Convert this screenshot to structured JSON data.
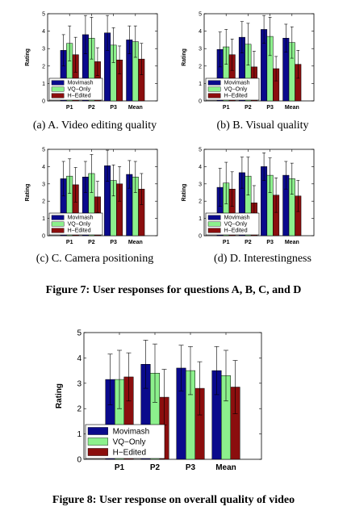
{
  "colors": {
    "movimash": "#0a0a8c",
    "vq_only": "#8cf08c",
    "h_edited": "#8b0e0e"
  },
  "subcaptions": [
    "(a) A. Video editing quality",
    "(b) B. Visual quality",
    "(c) C. Camera positioning",
    "(d) D. Interestingness"
  ],
  "figure7_caption": "Figure 7: User responses for questions A, B, C, and D",
  "figure8_caption": "Figure 8: User response on overall quality of video",
  "chart_data": [
    {
      "type": "bar",
      "ylabel": "Rating",
      "categories": [
        "P1",
        "P2",
        "P3",
        "Mean"
      ],
      "ylim": [
        0,
        5
      ],
      "yticks": [
        0,
        1,
        2,
        3,
        4,
        5
      ],
      "legend": "bottom-left",
      "series": [
        {
          "name": "Movimash",
          "values": [
            2.9,
            3.8,
            3.9,
            3.5
          ],
          "err": [
            0.9,
            1.1,
            1.0,
            0.8
          ]
        },
        {
          "name": "VQ−Only",
          "values": [
            3.3,
            3.6,
            3.2,
            3.4
          ],
          "err": [
            1.0,
            1.2,
            1.0,
            0.9
          ]
        },
        {
          "name": "H−Edited",
          "values": [
            2.65,
            2.25,
            2.35,
            2.4
          ],
          "err": [
            1.0,
            0.8,
            0.8,
            0.9
          ]
        }
      ]
    },
    {
      "type": "bar",
      "ylabel": "Rating",
      "categories": [
        "P1",
        "P2",
        "P3",
        "Mean"
      ],
      "ylim": [
        0,
        5
      ],
      "yticks": [
        0,
        1,
        2,
        3,
        4,
        5
      ],
      "legend": "bottom-left",
      "series": [
        {
          "name": "Movimash",
          "values": [
            2.95,
            3.65,
            4.1,
            3.6
          ],
          "err": [
            1.0,
            0.9,
            0.8,
            0.8
          ]
        },
        {
          "name": "VQ−Only",
          "values": [
            3.1,
            3.25,
            3.7,
            3.35
          ],
          "err": [
            1.0,
            1.2,
            1.1,
            0.9
          ]
        },
        {
          "name": "H−Edited",
          "values": [
            2.65,
            1.95,
            1.85,
            2.1
          ],
          "err": [
            0.9,
            0.9,
            0.7,
            0.8
          ]
        }
      ]
    },
    {
      "type": "bar",
      "ylabel": "Rating",
      "categories": [
        "P1",
        "P2",
        "P3",
        "Mean"
      ],
      "ylim": [
        0,
        5
      ],
      "yticks": [
        0,
        1,
        2,
        3,
        4,
        5
      ],
      "legend": "bottom-left",
      "series": [
        {
          "name": "Movimash",
          "values": [
            3.3,
            3.4,
            4.05,
            3.55
          ],
          "err": [
            1.0,
            0.9,
            0.9,
            0.8
          ]
        },
        {
          "name": "VQ−Only",
          "values": [
            3.45,
            3.6,
            3.2,
            3.4
          ],
          "err": [
            1.0,
            1.1,
            0.9,
            0.9
          ]
        },
        {
          "name": "H−Edited",
          "values": [
            2.95,
            2.25,
            3.0,
            2.7
          ],
          "err": [
            1.0,
            0.9,
            1.0,
            0.9
          ]
        }
      ]
    },
    {
      "type": "bar",
      "ylabel": "Rating",
      "categories": [
        "P1",
        "P2",
        "P3",
        "Mean"
      ],
      "ylim": [
        0,
        5
      ],
      "yticks": [
        0,
        1,
        2,
        3,
        4,
        5
      ],
      "legend": "bottom-left",
      "series": [
        {
          "name": "Movimash",
          "values": [
            2.8,
            3.65,
            4.0,
            3.5
          ],
          "err": [
            1.1,
            0.9,
            0.8,
            0.8
          ]
        },
        {
          "name": "VQ−Only",
          "values": [
            3.05,
            3.45,
            3.5,
            3.3
          ],
          "err": [
            1.2,
            1.1,
            1.0,
            0.9
          ]
        },
        {
          "name": "H−Edited",
          "values": [
            2.7,
            1.9,
            2.35,
            2.3
          ],
          "err": [
            1.0,
            1.0,
            1.0,
            0.9
          ]
        }
      ]
    },
    {
      "type": "bar",
      "ylabel": "Rating",
      "categories": [
        "P1",
        "P2",
        "P3",
        "Mean"
      ],
      "ylim": [
        0,
        5
      ],
      "yticks": [
        0,
        1,
        2,
        3,
        4,
        5
      ],
      "legend": "bottom-left",
      "series": [
        {
          "name": "Movimash",
          "values": [
            3.15,
            3.75,
            3.6,
            3.5
          ],
          "err": [
            1.0,
            0.95,
            0.9,
            0.95
          ]
        },
        {
          "name": "VQ−Only",
          "values": [
            3.15,
            3.4,
            3.5,
            3.3
          ],
          "err": [
            1.15,
            1.15,
            0.95,
            1.0
          ]
        },
        {
          "name": "H−Edited",
          "values": [
            3.25,
            2.45,
            2.8,
            2.85
          ],
          "err": [
            0.95,
            1.1,
            1.05,
            1.05
          ]
        }
      ]
    }
  ]
}
